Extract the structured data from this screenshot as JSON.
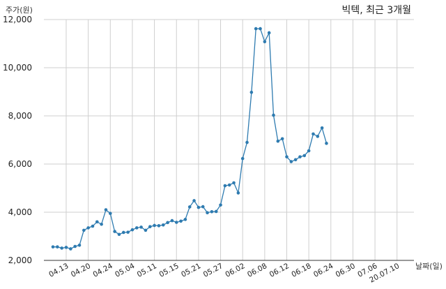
{
  "chart_data": {
    "type": "line",
    "title": "빅텍, 최근 3개월",
    "ylabel": "주가(원)",
    "xlabel": "날짜(일)",
    "ylim": [
      2000,
      12000
    ],
    "yticks": [
      "2,000",
      "4,000",
      "6,000",
      "8,000",
      "10,000",
      "12,000"
    ],
    "ytick_values": [
      2000,
      4000,
      6000,
      8000,
      10000,
      12000
    ],
    "xticks": [
      "04.13",
      "04.20",
      "04.24",
      "05.04",
      "05.11",
      "05.15",
      "05.21",
      "05.27",
      "06.02",
      "06.08",
      "06.12",
      "06.18",
      "06.24",
      "06.30",
      "07.06",
      "20.07.10"
    ],
    "xtick_index": [
      3,
      8,
      13,
      18,
      23,
      28,
      33,
      38,
      43,
      48,
      53,
      58,
      63,
      68,
      73,
      78
    ],
    "grid": true,
    "color": "#2e7bb0",
    "series": [
      {
        "values": [
          2560,
          2560,
          2510,
          2540,
          2480,
          2580,
          2630,
          3250,
          3350,
          3420,
          3600,
          3500,
          4100,
          3950,
          3200,
          3080,
          3160,
          3170,
          3270,
          3350,
          3380,
          3250,
          3400,
          3450,
          3440,
          3470,
          3570,
          3650,
          3580,
          3630,
          3700,
          4220,
          4480,
          4200,
          4230,
          3980,
          4020,
          4030,
          4300,
          5100,
          5130,
          5220,
          4800,
          6230,
          6900,
          8980,
          11620,
          11620,
          11080,
          11450,
          8030,
          6950,
          7050,
          6300,
          6100,
          6180,
          6300,
          6350,
          6550,
          7250,
          7150,
          7500,
          6860
        ]
      }
    ]
  }
}
